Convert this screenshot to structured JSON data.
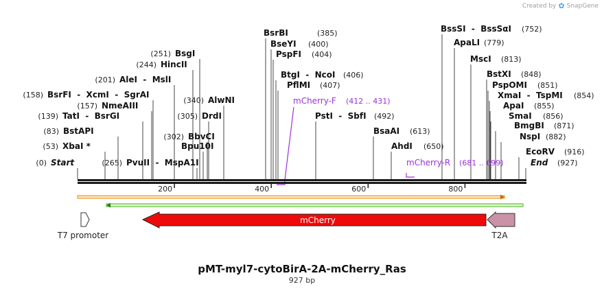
{
  "brand": {
    "created_by": "Created by",
    "name": "SnapGene"
  },
  "plasmid": {
    "name": "pMT-myl7-cytoBirA-2A-mCherry_Ras",
    "length_label": "927 bp",
    "length": 927
  },
  "axis": {
    "ticks": [
      200,
      400,
      600,
      800
    ]
  },
  "sites": [
    {
      "label": "Start",
      "pos": "(0)",
      "italic": true
    },
    {
      "label": "XbaI *",
      "pos": "(53)"
    },
    {
      "label": "BstAPI",
      "pos": "(83)"
    },
    {
      "label": "TatI  -  BsrGI",
      "pos": "(139)"
    },
    {
      "label": "NmeAIII",
      "pos": "(157)"
    },
    {
      "label": "BsrFI  -  XcmI  -  SgrAI",
      "pos": "(158)"
    },
    {
      "label": "AleI  -  MslI",
      "pos": "(201)"
    },
    {
      "label": "HincII",
      "pos": "(244)"
    },
    {
      "label": "BsgI",
      "pos": "(251)"
    },
    {
      "label": "PvuII  -  MspA1I",
      "pos": "(265)"
    },
    {
      "label": "BbvCI",
      "pos": "(302)"
    },
    {
      "label": "Bpu10I",
      "pos": ""
    },
    {
      "label": "DrdI",
      "pos": "(305)"
    },
    {
      "label": "AlwNI",
      "pos": "(340)"
    },
    {
      "label": "BsrBI",
      "pos": "(385)"
    },
    {
      "label": "BseYI",
      "pos": "(400)"
    },
    {
      "label": "PspFI",
      "pos": "(404)"
    },
    {
      "label": "BtgI  -  NcoI",
      "pos": "(406)"
    },
    {
      "label": "PflMI",
      "pos": "(407)"
    },
    {
      "label": "PstI  -  SbfI",
      "pos": "(492)"
    },
    {
      "label": "BsaAI",
      "pos": "(613)"
    },
    {
      "label": "AhdI",
      "pos": "(650)"
    },
    {
      "label": "BssSI  -  BssSαI",
      "pos": "(752)"
    },
    {
      "label": "ApaLI",
      "pos": "(779)"
    },
    {
      "label": "MscI",
      "pos": "(813)"
    },
    {
      "label": "BstXI",
      "pos": "(848)"
    },
    {
      "label": "PspOMI",
      "pos": "(851)"
    },
    {
      "label": "XmaI  -  TspMI",
      "pos": "(854)"
    },
    {
      "label": "ApaI",
      "pos": "(855)"
    },
    {
      "label": "SmaI",
      "pos": "(856)"
    },
    {
      "label": "BmgBI",
      "pos": "(871)"
    },
    {
      "label": "NspI",
      "pos": "(882)"
    },
    {
      "label": "EcoRV",
      "pos": "(916)"
    },
    {
      "label": "End",
      "pos": "(927)",
      "italic": true
    }
  ],
  "primers": [
    {
      "name": "mCherry-F",
      "range": "(412 .. 431)"
    },
    {
      "name": "mCherry-R",
      "range": "(681 .. 699)"
    }
  ],
  "features": [
    {
      "name": "mCherry",
      "color": "#ee0a0a"
    },
    {
      "name": "T2A",
      "color": "#c992a6"
    },
    {
      "name": "T7 promoter",
      "color": "#ffffff"
    }
  ],
  "colors": {
    "primer": "#9b30d9",
    "orf_orange": "#e8a030",
    "orf_green": "#5fc040"
  }
}
